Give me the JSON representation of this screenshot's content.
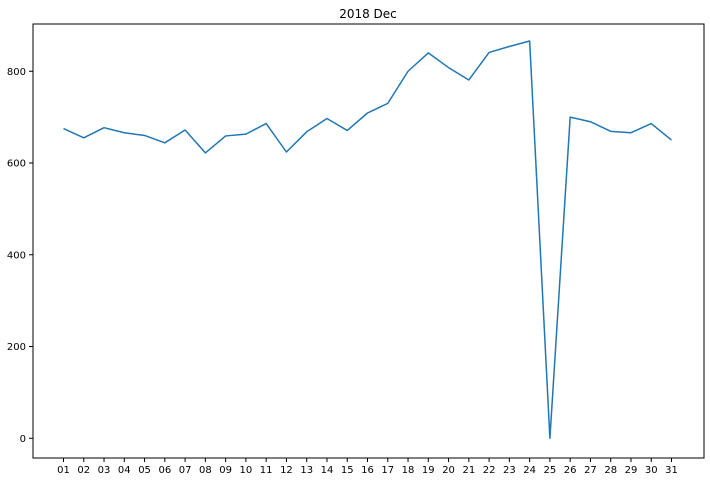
{
  "chart_data": {
    "type": "line",
    "title": "2018 Dec",
    "xlabel": "",
    "ylabel": "",
    "categories": [
      "01",
      "02",
      "03",
      "04",
      "05",
      "06",
      "07",
      "08",
      "09",
      "10",
      "11",
      "12",
      "13",
      "14",
      "15",
      "16",
      "17",
      "18",
      "19",
      "20",
      "21",
      "22",
      "23",
      "24",
      "25",
      "26",
      "27",
      "28",
      "29",
      "30",
      "31"
    ],
    "series": [
      {
        "values": [
          675,
          655,
          677,
          666,
          660,
          644,
          672,
          622,
          659,
          663,
          686,
          624,
          668,
          697,
          671,
          709,
          730,
          800,
          840,
          808,
          781,
          841,
          854,
          866,
          0,
          700,
          690,
          669,
          666,
          686,
          650
        ],
        "color": "#1f77b4"
      }
    ],
    "ylim": [
      -43,
      903
    ],
    "yticks": [
      0,
      200,
      400,
      600,
      800
    ],
    "grid": false,
    "legend": "none"
  }
}
